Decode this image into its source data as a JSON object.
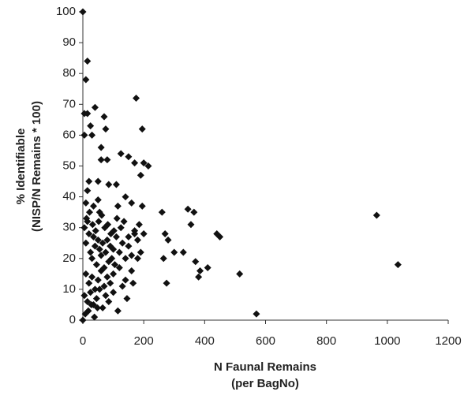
{
  "chart_data": {
    "type": "scatter",
    "xlabel_lines": [
      "N Faunal Remains",
      "(per BagNo)"
    ],
    "ylabel_lines": [
      "% Identifiable",
      "(NISP/N Remains * 100)"
    ],
    "color": "#111111",
    "xlim": [
      0,
      1200
    ],
    "xticks": [
      0,
      200,
      400,
      600,
      800,
      1000,
      1200
    ],
    "ylim": [
      0,
      100
    ],
    "yticks": [
      0,
      10,
      20,
      30,
      40,
      50,
      60,
      70,
      80,
      90,
      100
    ],
    "x": [
      0,
      15,
      10,
      5,
      15,
      40,
      25,
      70,
      75,
      5,
      30,
      60,
      80,
      60,
      175,
      195,
      150,
      125,
      200,
      215,
      170,
      190,
      140,
      110,
      50,
      85,
      20,
      15,
      10,
      50,
      35,
      55,
      115,
      160,
      195,
      260,
      345,
      365,
      355,
      280,
      270,
      265,
      300,
      330,
      440,
      450,
      410,
      385,
      380,
      370,
      515,
      570,
      965,
      1035,
      275,
      5,
      10,
      15,
      20,
      25,
      30,
      35,
      40,
      45,
      50,
      55,
      60,
      65,
      70,
      75,
      80,
      85,
      90,
      95,
      100,
      105,
      110,
      120,
      130,
      140,
      150,
      160,
      170,
      180,
      190,
      10,
      20,
      30,
      40,
      50,
      60,
      70,
      80,
      90,
      100,
      120,
      140,
      160,
      180,
      5,
      15,
      25,
      35,
      45,
      55,
      65,
      75,
      85,
      100,
      115,
      130,
      145,
      165,
      0,
      8,
      18,
      28,
      38,
      48,
      12,
      22,
      32,
      42,
      52,
      62,
      72,
      82,
      92,
      102,
      112,
      125,
      135,
      150,
      170,
      185,
      200
    ],
    "y": [
      100,
      84,
      78,
      67,
      67,
      69,
      63,
      66,
      62,
      60,
      60,
      56,
      52,
      52,
      72,
      62,
      53,
      54,
      51,
      50,
      51,
      47,
      40,
      44,
      45,
      44,
      45,
      42,
      38,
      39,
      37,
      35,
      37,
      38,
      37,
      35,
      36,
      35,
      31,
      26,
      28,
      20,
      22,
      22,
      28,
      27,
      17,
      16,
      14,
      19,
      15,
      2,
      34,
      18,
      12,
      30,
      25,
      32,
      28,
      22,
      20,
      27,
      24,
      18,
      26,
      23,
      21,
      25,
      17,
      22,
      26,
      19,
      24,
      20,
      23,
      18,
      27,
      22,
      25,
      20,
      24,
      21,
      28,
      26,
      22,
      15,
      12,
      14,
      10,
      13,
      16,
      11,
      14,
      12,
      15,
      17,
      13,
      16,
      20,
      8,
      6,
      9,
      5,
      7,
      10,
      4,
      8,
      6,
      9,
      3,
      11,
      7,
      12,
      0,
      2,
      3,
      5,
      1,
      4,
      33,
      35,
      31,
      29,
      32,
      34,
      30,
      31,
      28,
      29,
      33,
      30,
      32,
      27,
      29,
      31,
      28
    ]
  }
}
